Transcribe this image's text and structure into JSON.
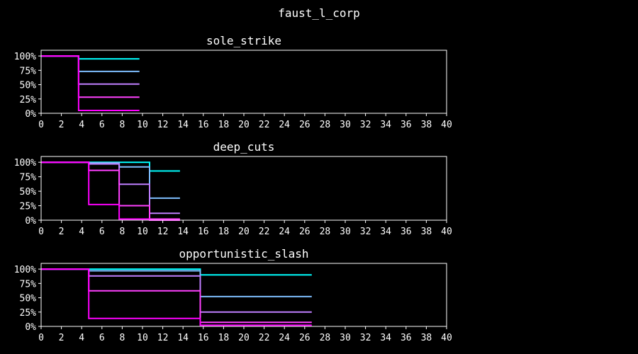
{
  "title": "faust_l_corp",
  "colors": {
    "background": "#000000",
    "axes": "#ffffff",
    "series": [
      "#00ffff",
      "#7fbfff",
      "#bf7fff",
      "#ff40ff",
      "#ff00ff"
    ]
  },
  "chart_data": [
    {
      "type": "line",
      "step": true,
      "title": "sole_strike",
      "xlim": [
        0,
        40
      ],
      "ylim": [
        0,
        1.1
      ],
      "xticks": [
        0,
        2,
        4,
        6,
        8,
        10,
        12,
        14,
        16,
        18,
        20,
        22,
        24,
        26,
        28,
        30,
        32,
        34,
        36,
        38,
        40
      ],
      "yticks": [
        0,
        0.25,
        0.5,
        0.75,
        1.0
      ],
      "ytick_labels": [
        "0%",
        "25%",
        "50%",
        "75%",
        "100%"
      ],
      "grid": false,
      "series": [
        {
          "x": [
            0,
            3.7,
            3.7,
            9.7
          ],
          "y": [
            1.0,
            1.0,
            0.95,
            0.95
          ]
        },
        {
          "x": [
            0,
            3.7,
            3.7,
            9.7
          ],
          "y": [
            1.0,
            1.0,
            0.73,
            0.73
          ]
        },
        {
          "x": [
            0,
            3.7,
            3.7,
            9.7
          ],
          "y": [
            1.0,
            1.0,
            0.51,
            0.51
          ]
        },
        {
          "x": [
            0,
            3.7,
            3.7,
            9.7
          ],
          "y": [
            1.0,
            1.0,
            0.28,
            0.28
          ]
        },
        {
          "x": [
            0,
            3.7,
            3.7,
            9.7
          ],
          "y": [
            1.0,
            1.0,
            0.05,
            0.05
          ]
        }
      ]
    },
    {
      "type": "line",
      "step": true,
      "title": "deep_cuts",
      "xlim": [
        0,
        40
      ],
      "ylim": [
        0,
        1.1
      ],
      "xticks": [
        0,
        2,
        4,
        6,
        8,
        10,
        12,
        14,
        16,
        18,
        20,
        22,
        24,
        26,
        28,
        30,
        32,
        34,
        36,
        38,
        40
      ],
      "yticks": [
        0,
        0.25,
        0.5,
        0.75,
        1.0
      ],
      "ytick_labels": [
        "0%",
        "25%",
        "50%",
        "75%",
        "100%"
      ],
      "grid": false,
      "series": [
        {
          "x": [
            0,
            10.7,
            10.7,
            13.7
          ],
          "y": [
            1.0,
            1.0,
            0.85,
            0.85
          ]
        },
        {
          "x": [
            0,
            4.7,
            4.7,
            7.7,
            7.7,
            10.7,
            10.7,
            13.7
          ],
          "y": [
            1.0,
            1.0,
            0.99,
            0.99,
            0.92,
            0.92,
            0.38,
            0.38
          ]
        },
        {
          "x": [
            0,
            4.7,
            4.7,
            7.7,
            7.7,
            10.7,
            10.7,
            13.7
          ],
          "y": [
            1.0,
            1.0,
            0.97,
            0.97,
            0.62,
            0.62,
            0.12,
            0.12
          ]
        },
        {
          "x": [
            0,
            4.7,
            4.7,
            7.7,
            7.7,
            10.7,
            10.7,
            13.7
          ],
          "y": [
            1.0,
            1.0,
            0.86,
            0.86,
            0.25,
            0.25,
            0.02,
            0.02
          ]
        },
        {
          "x": [
            0,
            4.7,
            4.7,
            7.7,
            7.7,
            10.7,
            10.7,
            13.7
          ],
          "y": [
            1.0,
            1.0,
            0.27,
            0.27,
            0.02,
            0.02,
            0.0,
            0.0
          ]
        }
      ]
    },
    {
      "type": "line",
      "step": true,
      "title": "opportunistic_slash",
      "xlim": [
        0,
        40
      ],
      "ylim": [
        0,
        1.1
      ],
      "xticks": [
        0,
        2,
        4,
        6,
        8,
        10,
        12,
        14,
        16,
        18,
        20,
        22,
        24,
        26,
        28,
        30,
        32,
        34,
        36,
        38,
        40
      ],
      "yticks": [
        0,
        0.25,
        0.5,
        0.75,
        1.0
      ],
      "ytick_labels": [
        "0%",
        "25%",
        "50%",
        "75%",
        "100%"
      ],
      "grid": false,
      "series": [
        {
          "x": [
            0,
            15.7,
            15.7,
            26.7
          ],
          "y": [
            1.0,
            1.0,
            0.9,
            0.9
          ]
        },
        {
          "x": [
            0,
            4.7,
            4.7,
            15.7,
            15.7,
            26.7
          ],
          "y": [
            1.0,
            1.0,
            0.97,
            0.97,
            0.52,
            0.52
          ]
        },
        {
          "x": [
            0,
            4.7,
            4.7,
            15.7,
            15.7,
            26.7
          ],
          "y": [
            1.0,
            1.0,
            0.88,
            0.88,
            0.25,
            0.25
          ]
        },
        {
          "x": [
            0,
            4.7,
            4.7,
            15.7,
            15.7,
            26.7
          ],
          "y": [
            1.0,
            1.0,
            0.62,
            0.62,
            0.07,
            0.07
          ]
        },
        {
          "x": [
            0,
            4.7,
            4.7,
            15.7,
            15.7,
            26.7
          ],
          "y": [
            1.0,
            1.0,
            0.14,
            0.14,
            0.02,
            0.02
          ]
        }
      ]
    }
  ]
}
